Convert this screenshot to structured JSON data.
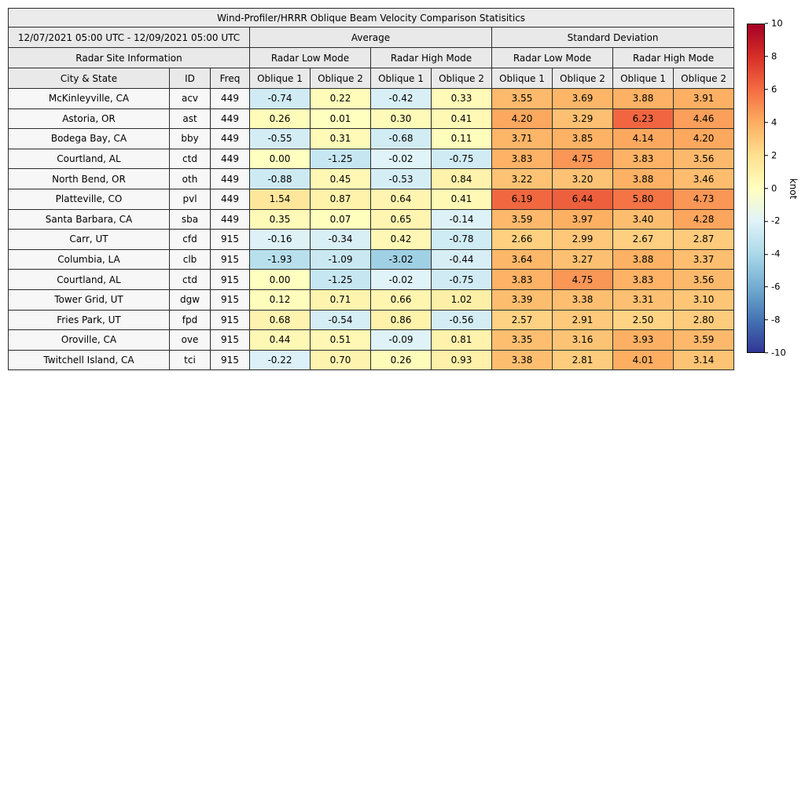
{
  "chart_data": {
    "type": "heatmap",
    "title": "Wind-Profiler/HRRR Oblique Beam Velocity Comparison Statisitics",
    "header": {
      "date_range": "12/07/2021 05:00 UTC - 12/09/2021 05:00 UTC",
      "group_average": "Average",
      "group_std": "Standard Deviation",
      "site_info": "Radar Site Information",
      "low_mode": "Radar Low Mode",
      "high_mode": "Radar High Mode",
      "col_city": "City & State",
      "col_id": "ID",
      "col_freq": "Freq",
      "col_oblique1": "Oblique 1",
      "col_oblique2": "Oblique 2"
    },
    "rows": [
      {
        "city": "McKinleyville, CA",
        "id": "acv",
        "freq": "449",
        "values": [
          "-0.74",
          "0.22",
          "-0.42",
          "0.33",
          "3.55",
          "3.69",
          "3.88",
          "3.91"
        ]
      },
      {
        "city": "Astoria, OR",
        "id": "ast",
        "freq": "449",
        "values": [
          "0.26",
          "0.01",
          "0.30",
          "0.41",
          "4.20",
          "3.29",
          "6.23",
          "4.46"
        ]
      },
      {
        "city": "Bodega Bay, CA",
        "id": "bby",
        "freq": "449",
        "values": [
          "-0.55",
          "0.31",
          "-0.68",
          "0.11",
          "3.71",
          "3.85",
          "4.14",
          "4.20"
        ]
      },
      {
        "city": "Courtland, AL",
        "id": "ctd",
        "freq": "449",
        "values": [
          "0.00",
          "-1.25",
          "-0.02",
          "-0.75",
          "3.83",
          "4.75",
          "3.83",
          "3.56"
        ]
      },
      {
        "city": "North Bend, OR",
        "id": "oth",
        "freq": "449",
        "values": [
          "-0.88",
          "0.45",
          "-0.53",
          "0.84",
          "3.22",
          "3.20",
          "3.88",
          "3.46"
        ]
      },
      {
        "city": "Platteville, CO",
        "id": "pvl",
        "freq": "449",
        "values": [
          "1.54",
          "0.87",
          "0.64",
          "0.41",
          "6.19",
          "6.44",
          "5.80",
          "4.73"
        ]
      },
      {
        "city": "Santa Barbara, CA",
        "id": "sba",
        "freq": "449",
        "values": [
          "0.35",
          "0.07",
          "0.65",
          "-0.14",
          "3.59",
          "3.97",
          "3.40",
          "4.28"
        ]
      },
      {
        "city": "Carr, UT",
        "id": "cfd",
        "freq": "915",
        "values": [
          "-0.16",
          "-0.34",
          "0.42",
          "-0.78",
          "2.66",
          "2.99",
          "2.67",
          "2.87"
        ]
      },
      {
        "city": "Columbia, LA",
        "id": "clb",
        "freq": "915",
        "values": [
          "-1.93",
          "-1.09",
          "-3.02",
          "-0.44",
          "3.64",
          "3.27",
          "3.88",
          "3.37"
        ]
      },
      {
        "city": "Courtland, AL",
        "id": "ctd",
        "freq": "915",
        "values": [
          "0.00",
          "-1.25",
          "-0.02",
          "-0.75",
          "3.83",
          "4.75",
          "3.83",
          "3.56"
        ]
      },
      {
        "city": "Tower Grid, UT",
        "id": "dgw",
        "freq": "915",
        "values": [
          "0.12",
          "0.71",
          "0.66",
          "1.02",
          "3.39",
          "3.38",
          "3.31",
          "3.10"
        ]
      },
      {
        "city": "Fries Park, UT",
        "id": "fpd",
        "freq": "915",
        "values": [
          "0.68",
          "-0.54",
          "0.86",
          "-0.56",
          "2.57",
          "2.91",
          "2.50",
          "2.80"
        ]
      },
      {
        "city": "Oroville, CA",
        "id": "ove",
        "freq": "915",
        "values": [
          "0.44",
          "0.51",
          "-0.09",
          "0.81",
          "3.35",
          "3.16",
          "3.93",
          "3.59"
        ]
      },
      {
        "city": "Twitchell Island, CA",
        "id": "tci",
        "freq": "915",
        "values": [
          "-0.22",
          "0.70",
          "0.26",
          "0.93",
          "3.38",
          "2.81",
          "4.01",
          "3.14"
        ]
      }
    ],
    "colorbar": {
      "label": "knot",
      "ticks": [
        "10",
        "8",
        "6",
        "4",
        "2",
        "0",
        "-2",
        "-4",
        "-6",
        "-8",
        "-10"
      ],
      "vmin": -10,
      "vmax": 10,
      "gradient": [
        "#313695",
        "#4575b4",
        "#74add1",
        "#abd9e9",
        "#e0f3f8",
        "#ffffbf",
        "#fee090",
        "#fdae61",
        "#f46d43",
        "#d73027",
        "#a50026"
      ]
    }
  }
}
